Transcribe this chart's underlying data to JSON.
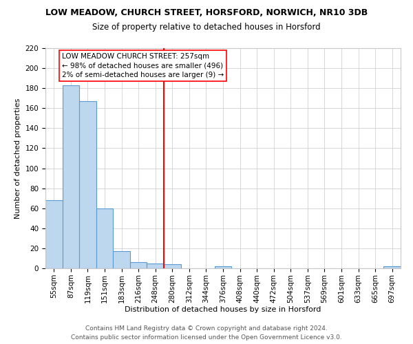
{
  "title": "LOW MEADOW, CHURCH STREET, HORSFORD, NORWICH, NR10 3DB",
  "subtitle": "Size of property relative to detached houses in Horsford",
  "xlabel": "Distribution of detached houses by size in Horsford",
  "ylabel": "Number of detached properties",
  "footer_line1": "Contains HM Land Registry data © Crown copyright and database right 2024.",
  "footer_line2": "Contains public sector information licensed under the Open Government Licence v3.0.",
  "bin_labels": [
    "55sqm",
    "87sqm",
    "119sqm",
    "151sqm",
    "183sqm",
    "216sqm",
    "248sqm",
    "280sqm",
    "312sqm",
    "344sqm",
    "376sqm",
    "408sqm",
    "440sqm",
    "472sqm",
    "504sqm",
    "537sqm",
    "569sqm",
    "601sqm",
    "633sqm",
    "665sqm",
    "697sqm"
  ],
  "bin_values": [
    68,
    183,
    167,
    60,
    17,
    6,
    5,
    4,
    0,
    0,
    2,
    0,
    0,
    0,
    0,
    0,
    0,
    0,
    0,
    0,
    2
  ],
  "bar_color": "#bdd7ee",
  "bar_edge_color": "#5b9bd5",
  "grid_color": "#c8c8c8",
  "vline_x_index": 6.5,
  "vline_color": "red",
  "annotation_text_line1": "LOW MEADOW CHURCH STREET: 257sqm",
  "annotation_text_line2": "← 98% of detached houses are smaller (496)",
  "annotation_text_line3": "2% of semi-detached houses are larger (9) →",
  "ylim": [
    0,
    220
  ],
  "yticks": [
    0,
    20,
    40,
    60,
    80,
    100,
    120,
    140,
    160,
    180,
    200,
    220
  ],
  "background_color": "#ffffff",
  "title_fontsize": 9.0,
  "subtitle_fontsize": 8.5,
  "axis_label_fontsize": 8.0,
  "tick_fontsize": 7.5,
  "footer_fontsize": 6.5,
  "annot_fontsize": 7.5
}
